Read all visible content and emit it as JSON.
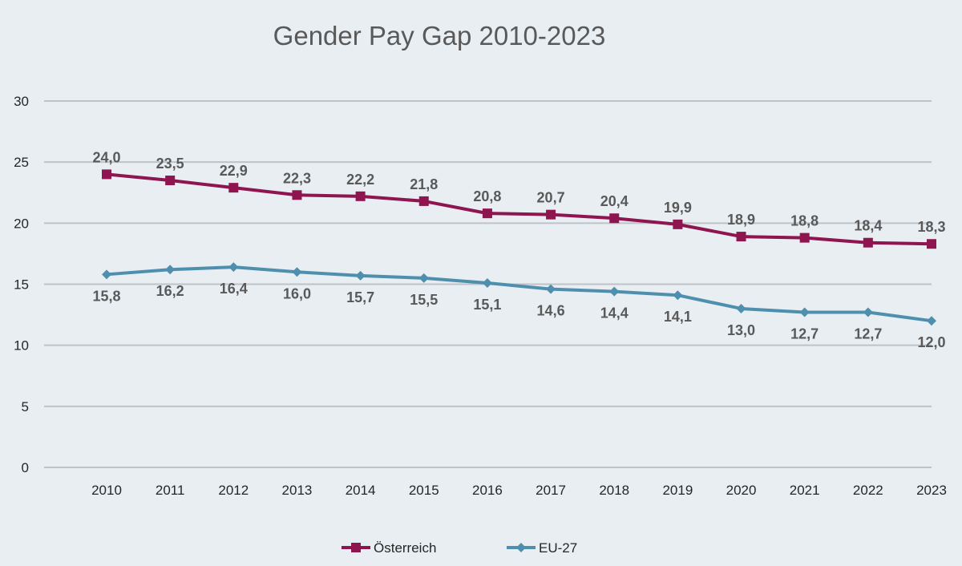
{
  "chart_data": {
    "type": "line",
    "title": "Gender Pay Gap 2010-2023",
    "xlabel": "",
    "ylabel": "",
    "ylim": [
      0,
      30
    ],
    "yticks": [
      "0",
      "5",
      "10",
      "15",
      "20",
      "25",
      "30"
    ],
    "grid": true,
    "legend_position": "bottom",
    "categories": [
      "2010",
      "2011",
      "2012",
      "2013",
      "2014",
      "2015",
      "2016",
      "2017",
      "2018",
      "2019",
      "2020",
      "2021",
      "2022",
      "2023"
    ],
    "series": [
      {
        "name": "Österreich",
        "color": "#8e1550",
        "marker": "square",
        "label_position": "above",
        "values": [
          24.0,
          23.5,
          22.9,
          22.3,
          22.2,
          21.8,
          20.8,
          20.7,
          20.4,
          19.9,
          18.9,
          18.8,
          18.4,
          18.3
        ],
        "labels": [
          "24,0",
          "23,5",
          "22,9",
          "22,3",
          "22,2",
          "21,8",
          "20,8",
          "20,7",
          "20,4",
          "19,9",
          "18,9",
          "18,8",
          "18,4",
          "18,3"
        ]
      },
      {
        "name": "EU-27",
        "color": "#4f8fae",
        "marker": "diamond",
        "label_position": "below",
        "values": [
          15.8,
          16.2,
          16.4,
          16.0,
          15.7,
          15.5,
          15.1,
          14.6,
          14.4,
          14.1,
          13.0,
          12.7,
          12.7,
          12.0
        ],
        "labels": [
          "15,8",
          "16,2",
          "16,4",
          "16,0",
          "15,7",
          "15,5",
          "15,1",
          "14,6",
          "14,4",
          "14,1",
          "13,0",
          "12,7",
          "12,7",
          "12,0"
        ]
      }
    ]
  }
}
